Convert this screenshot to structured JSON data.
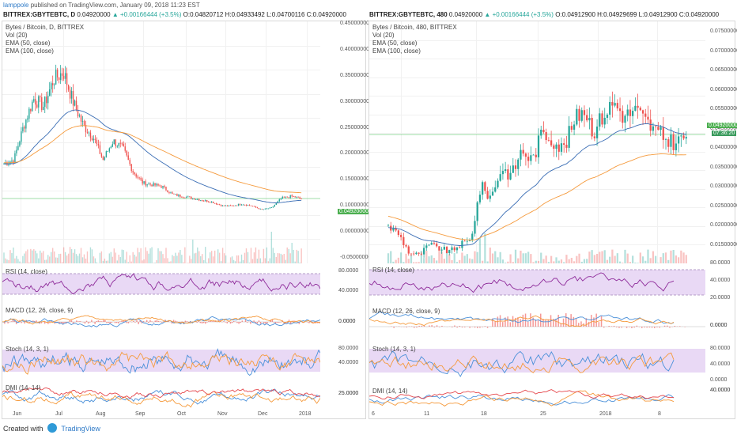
{
  "header": {
    "author": "lamppole",
    "published": "published on TradingView.com, January 09, 2018 11:23 EST"
  },
  "left": {
    "quote": {
      "symbol": "BITTREX:GBYTEBTC, D",
      "price": "0.04920000",
      "change": "▲ +0.00166444 (+3.5%)",
      "o": "O:0.04820712",
      "h": "H:0.04933492",
      "l": "L:0.04700116",
      "c": "C:0.04920000"
    },
    "legend": [
      "Bytes / Bitcoin, D, BITTREX",
      "Vol (20)",
      "EMA (50, close)",
      "EMA (100, close)"
    ],
    "price_axis": [
      "0.450000000",
      "0.400000000",
      "0.350000000",
      "0.300000000",
      "0.250000000",
      "0.200000000",
      "0.150000000",
      "0.100000000",
      "0.04920000",
      "0.000000000",
      "-0.050000000"
    ],
    "last_price": "0.04920000",
    "rsi_label": "RSI (14, close)",
    "rsi_axis": [
      "80.0000",
      "40.0000"
    ],
    "macd_label": "MACD (12, 26, close, 9)",
    "macd_axis": [
      "0.0000"
    ],
    "stoch_label": "Stoch (14, 3, 1)",
    "stoch_axis": [
      "80.0000",
      "40.0000"
    ],
    "dmi_label": "DMI (14, 14)",
    "dmi_axis": [
      "25.0000"
    ],
    "time_axis": [
      "Jun",
      "Jul",
      "Aug",
      "Sep",
      "Oct",
      "Nov",
      "Dec",
      "2018"
    ]
  },
  "right": {
    "quote": {
      "symbol": "BITTREX:GBYTEBTC, 480",
      "price": "0.04920000",
      "change": "▲ +0.00166444 (+3.5%)",
      "o": "O:0.04912900",
      "h": "H:0.04929699",
      "l": "L:0.04912900",
      "c": "C:0.04920000"
    },
    "legend": [
      "Bytes / Bitcoin, 480, BITTREX",
      "Vol (20)",
      "EMA (50, close)",
      "EMA (100, close)"
    ],
    "price_axis": [
      "0.07500000",
      "0.07000000",
      "0.06500000",
      "0.06000000",
      "0.05500000",
      "0.04920000",
      "0.04500000",
      "0.04000000",
      "0.03500000",
      "0.03000000",
      "0.02500000",
      "0.02000000",
      "0.01500000"
    ],
    "last_price": "0.04920000",
    "countdown": "07:36:20",
    "rsi_label": "RSI (14, close)",
    "rsi_axis": [
      "80.0000",
      "40.0000",
      "20.0000"
    ],
    "macd_label": "MACD (12, 26, close, 9)",
    "macd_axis": [
      "0.0000"
    ],
    "stoch_label": "Stoch (14, 3, 1)",
    "stoch_axis": [
      "80.0000",
      "40.0000",
      "0.0000"
    ],
    "dmi_label": "DMI (14, 14)",
    "dmi_axis": [
      "40.0000"
    ],
    "time_axis": [
      "6",
      "11",
      "18",
      "25",
      "2018",
      "8"
    ]
  },
  "footer": {
    "created": "Created with",
    "brand": "TradingView"
  },
  "colors": {
    "up": "#26a69a",
    "down": "#ef5350",
    "ema50": "#3b6eb5",
    "ema100": "#f59a3c",
    "rsi_band": "#e9d9f5",
    "rsi_line": "#8e2b9a",
    "price_tag": "#4caf50"
  }
}
